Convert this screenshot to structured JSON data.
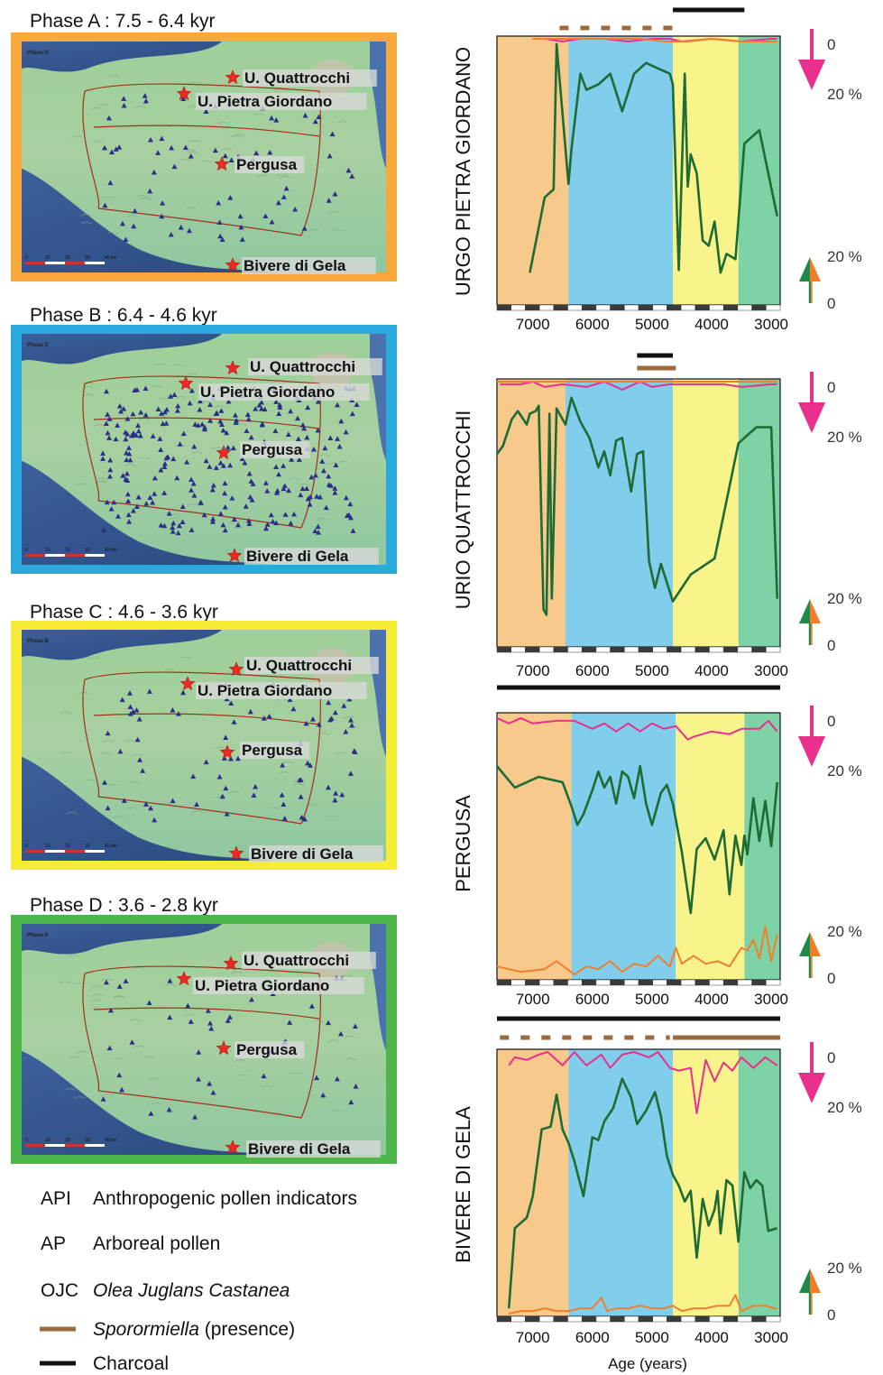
{
  "colors": {
    "phaseA": "#f9a93b",
    "phaseB": "#2aa9df",
    "phaseC": "#f6ec36",
    "phaseD": "#4cb64a",
    "bandA": "#f7c98b",
    "bandB": "#80cdec",
    "bandC": "#f8f38a",
    "bandD": "#7dd3a6",
    "api": "#e8308c",
    "ap": "#1d6b35",
    "ojc": "#f27e2a",
    "sporormiella": "#9c6a3c",
    "charcoal": "#111111"
  },
  "maps": [
    {
      "title": "Phase A : 7.5 - 6.4 kyr",
      "corner": "Phase D",
      "sites": [
        "U. Quattrocchi",
        "U. Pietra Giordano",
        "Pergusa",
        "Bivere di Gela"
      ]
    },
    {
      "title": "Phase B : 6.4 - 4.6 kyr",
      "corner": "Phase C",
      "sites": [
        "U. Quattrocchi",
        "U. Pietra Giordano",
        "Pergusa",
        "Bivere di Gela"
      ]
    },
    {
      "title": "Phase C : 4.6 - 3.6 kyr",
      "corner": "Phase B",
      "sites": [
        "U. Quattrocchi",
        "U. Pietra Giordano",
        "Pergusa",
        "Bivere di Gela"
      ]
    },
    {
      "title": "Phase D : 3.6 - 2.8 kyr",
      "corner": "Phase A",
      "sites": [
        "U. Quattrocchi",
        "U. Pietra Giordano",
        "Pergusa",
        "Bivere di Gela"
      ]
    }
  ],
  "scale_labels": [
    "0",
    "10",
    "20",
    "30",
    "40 km"
  ],
  "legend": [
    {
      "code": "API",
      "text": "Anthropogenic pollen indicators",
      "italic": false
    },
    {
      "code": "AP",
      "text": "Arboreal pollen",
      "italic": false
    },
    {
      "code": "OJC",
      "text": "Olea Juglans Castanea",
      "italic": true
    },
    {
      "code": "",
      "text": "Sporormiella",
      "suffix": " (presence)",
      "italic": true
    },
    {
      "code": "",
      "text": "Charcoal",
      "italic": false
    }
  ],
  "axis_label": "Age (years)",
  "pct_labels": {
    "zero": "0",
    "twenty": "20 %"
  },
  "chart_data": [
    {
      "type": "line",
      "site": "URGO PIETRA GIORDANO",
      "xlim": [
        7600,
        2850
      ],
      "xticks": [
        7000,
        6000,
        5000,
        4000,
        3000
      ],
      "phase_bounds": [
        6400,
        4650,
        3550
      ],
      "series": [
        {
          "name": "API",
          "x": [
            7000,
            6800,
            6500,
            6200,
            5800,
            5400,
            5000,
            4700,
            4500,
            4000,
            3500,
            3000,
            2900
          ],
          "y": [
            1,
            1,
            2,
            1,
            1,
            2,
            1,
            1,
            2,
            1,
            2,
            1,
            1
          ]
        },
        {
          "name": "AP",
          "x": [
            7050,
            6800,
            6650,
            6600,
            6400,
            6350,
            6200,
            6100,
            5900,
            5700,
            5500,
            5300,
            5100,
            4900,
            4700,
            4650,
            4550,
            4450,
            4400,
            4350,
            4250,
            4150,
            4050,
            3950,
            3850,
            3750,
            3600,
            3450,
            3200,
            2900
          ],
          "y": [
            88,
            60,
            57,
            3,
            55,
            42,
            14,
            20,
            18,
            14,
            28,
            14,
            10,
            12,
            14,
            18,
            87,
            14,
            56,
            44,
            51,
            76,
            78,
            69,
            88,
            81,
            83,
            40,
            35,
            67
          ]
        },
        {
          "name": "OJC",
          "x": [
            7000,
            6000,
            5200,
            4800,
            4400,
            4000,
            3500,
            3000,
            2900
          ],
          "y": [
            1,
            1,
            1,
            2,
            2,
            1,
            2,
            2,
            2
          ]
        }
      ],
      "sporormiella": [
        [
          6550,
          4650
        ]
      ],
      "charcoal": [
        [
          4650,
          3450
        ]
      ]
    },
    {
      "type": "line",
      "site": "URIO QUATTROCCHI",
      "xlim": [
        7600,
        2850
      ],
      "xticks": [
        7000,
        6000,
        5000,
        4000,
        3000
      ],
      "phase_bounds": [
        6450,
        4650,
        3550
      ],
      "series": [
        {
          "name": "API",
          "x": [
            7550,
            7200,
            7000,
            6800,
            6500,
            6100,
            5800,
            5500,
            5200,
            5000,
            4700,
            4300,
            3800,
            3500,
            3000,
            2900
          ],
          "y": [
            2,
            2,
            1,
            3,
            2,
            3,
            1,
            4,
            1,
            3,
            2,
            2,
            2,
            3,
            2,
            2
          ]
        },
        {
          "name": "AP",
          "x": [
            7600,
            7500,
            7350,
            7250,
            7100,
            7050,
            6950,
            6900,
            6820,
            6770,
            6720,
            6680,
            6600,
            6450,
            6350,
            6200,
            6050,
            5900,
            5800,
            5700,
            5600,
            5500,
            5350,
            5250,
            5150,
            5050,
            4950,
            4850,
            4650,
            4350,
            3950,
            3550,
            3250,
            3000,
            2900
          ],
          "y": [
            28,
            25,
            15,
            12,
            17,
            13,
            12,
            10,
            86,
            88,
            13,
            82,
            11,
            17,
            7,
            16,
            22,
            33,
            27,
            36,
            23,
            22,
            42,
            28,
            27,
            68,
            78,
            69,
            83,
            73,
            67,
            24,
            18,
            18,
            82
          ]
        },
        {
          "name": "OJC",
          "x": [
            7600,
            6000,
            5000,
            4000,
            3200,
            2900
          ],
          "y": [
            1,
            1,
            1,
            1,
            1,
            1
          ]
        }
      ],
      "sporormiella": [
        [
          5250,
          4600
        ]
      ],
      "charcoal": [
        [
          5250,
          4650
        ]
      ]
    },
    {
      "type": "line",
      "site": "PERGUSA",
      "xlim": [
        7600,
        2850
      ],
      "xticks": [
        7000,
        6000,
        5000,
        4000,
        3000
      ],
      "phase_bounds": [
        6350,
        4600,
        3450
      ],
      "series": [
        {
          "name": "API",
          "x": [
            7600,
            7400,
            7200,
            7000,
            6600,
            6300,
            6000,
            5800,
            5600,
            5400,
            5200,
            5000,
            4800,
            4600,
            4400,
            4300,
            4000,
            3700,
            3500,
            3200,
            3050,
            2900
          ],
          "y": [
            2,
            4,
            2,
            4,
            3,
            3,
            6,
            4,
            7,
            4,
            7,
            4,
            6,
            5,
            10,
            9,
            7,
            8,
            6,
            6,
            3,
            7
          ]
        },
        {
          "name": "AP",
          "x": [
            7600,
            7300,
            6900,
            6500,
            6350,
            6250,
            6150,
            6000,
            5900,
            5800,
            5700,
            5600,
            5500,
            5400,
            5300,
            5200,
            5100,
            5000,
            4850,
            4750,
            4650,
            4500,
            4350,
            4250,
            4100,
            3950,
            3800,
            3700,
            3600,
            3500,
            3450,
            3400,
            3300,
            3200,
            3100,
            3000,
            2900
          ],
          "y": [
            20,
            28,
            24,
            26,
            35,
            42,
            38,
            29,
            22,
            28,
            24,
            34,
            22,
            24,
            32,
            20,
            34,
            42,
            30,
            27,
            34,
            52,
            75,
            51,
            47,
            55,
            44,
            68,
            46,
            57,
            46,
            53,
            32,
            48,
            33,
            50,
            26
          ]
        },
        {
          "name": "OJC",
          "x": [
            7600,
            7200,
            6800,
            6600,
            6300,
            6100,
            5900,
            5700,
            5500,
            5300,
            5100,
            4900,
            4700,
            4600,
            4500,
            4300,
            4100,
            3900,
            3700,
            3500,
            3400,
            3300,
            3200,
            3100,
            3000,
            2900
          ],
          "y": [
            95,
            97,
            96,
            93,
            98,
            95,
            96,
            93,
            97,
            94,
            95,
            91,
            95,
            88,
            94,
            91,
            94,
            93,
            95,
            88,
            89,
            85,
            92,
            80,
            93,
            83
          ]
        }
      ],
      "sporormiella": [],
      "charcoal": [
        [
          7600,
          2850
        ]
      ]
    },
    {
      "type": "line",
      "site": "BIVERE DI GELA",
      "xlim": [
        7600,
        2850
      ],
      "xticks": [
        7000,
        6000,
        5000,
        4000,
        3000
      ],
      "phase_bounds": [
        6400,
        4650,
        3550
      ],
      "series": [
        {
          "name": "API",
          "x": [
            7400,
            7300,
            7100,
            6900,
            6750,
            6500,
            6300,
            6100,
            5850,
            5700,
            5500,
            5300,
            5050,
            4900,
            4700,
            4550,
            4350,
            4250,
            4100,
            3950,
            3800,
            3650,
            3500,
            3300,
            3100,
            2900
          ],
          "y": [
            6,
            3,
            4,
            2,
            1,
            6,
            1,
            6,
            2,
            7,
            2,
            1,
            3,
            1,
            7,
            8,
            7,
            24,
            4,
            12,
            5,
            8,
            3,
            7,
            3,
            6
          ]
        },
        {
          "name": "AP",
          "x": [
            7400,
            7300,
            7100,
            7000,
            6850,
            6700,
            6600,
            6500,
            6400,
            6300,
            6150,
            6000,
            5900,
            5800,
            5650,
            5500,
            5350,
            5250,
            5100,
            4950,
            4850,
            4750,
            4650,
            4550,
            4450,
            4350,
            4250,
            4150,
            4050,
            3950,
            3900,
            3850,
            3750,
            3650,
            3550,
            3450,
            3350,
            3250,
            3150,
            3050,
            2900
          ],
          "y": [
            97,
            67,
            63,
            55,
            30,
            29,
            17,
            30,
            35,
            42,
            55,
            33,
            34,
            27,
            22,
            11,
            18,
            28,
            23,
            16,
            25,
            40,
            47,
            51,
            57,
            53,
            78,
            56,
            66,
            60,
            53,
            69,
            49,
            51,
            72,
            46,
            52,
            49,
            51,
            68,
            67
          ]
        },
        {
          "name": "OJC",
          "x": [
            7400,
            7200,
            7000,
            6800,
            6600,
            6400,
            6200,
            6000,
            5850,
            5750,
            5600,
            5400,
            5200,
            5000,
            4800,
            4650,
            4500,
            4300,
            4100,
            3900,
            3700,
            3600,
            3500,
            3400,
            3300,
            3100,
            2950,
            2900
          ],
          "y": [
            99,
            98,
            98,
            97,
            98,
            98,
            97,
            97,
            93,
            98,
            97,
            97,
            96,
            97,
            97,
            96,
            98,
            97,
            97,
            96,
            96,
            92,
            98,
            97,
            96,
            96,
            97,
            97
          ]
        }
      ],
      "sporormiella": [
        [
          7550,
          4700
        ],
        [
          4650,
          2850
        ]
      ],
      "sporormiella_style": [
        "dashed",
        "solid"
      ],
      "charcoal": [
        [
          7600,
          2850
        ]
      ]
    }
  ]
}
